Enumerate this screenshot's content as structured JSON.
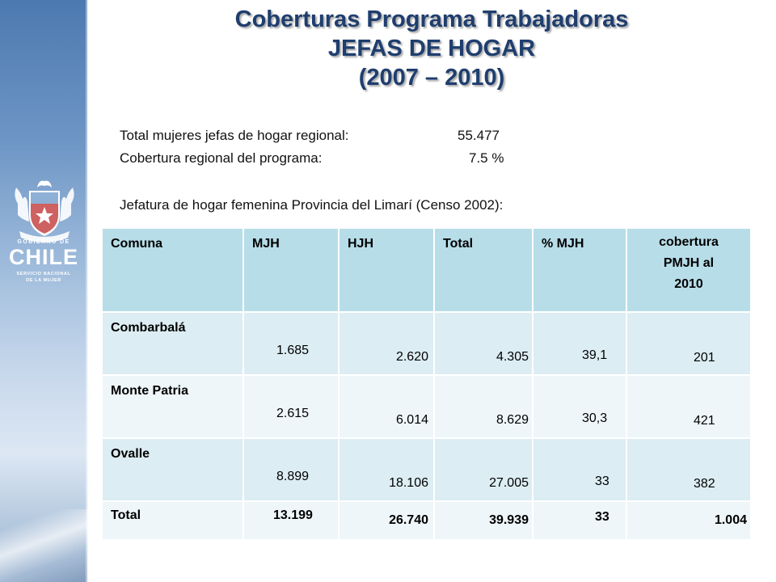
{
  "title": {
    "line1": "Coberturas Programa Trabajadoras",
    "line2": "JEFAS DE HOGAR",
    "line3": "(2007 – 2010)"
  },
  "logo": {
    "gobierno": "GOBIERNO DE",
    "chile": "CHILE",
    "servicio": "SERVICIO NACIONAL",
    "mujer": "DE LA MUJER"
  },
  "info": {
    "total_label": "Total mujeres jefas de hogar regional:",
    "total_value": "55.477",
    "coverage_label": "Cobertura regional del programa:",
    "coverage_value": "7.5 %",
    "census_label": "Jefatura de hogar femenina Provincia del Limarí (Censo 2002):"
  },
  "table": {
    "headers": [
      "Comuna",
      "MJH",
      "HJH",
      "Total",
      "% MJH",
      "cobertura PMJH  al 2010"
    ],
    "header_last_lines": [
      "cobertura",
      "PMJH  al",
      "2010"
    ],
    "rows": [
      {
        "comuna": "Combarbalá",
        "mjh": "1.685",
        "hjh": "2.620",
        "total": "4.305",
        "pct": "39,1",
        "cobertura": "201"
      },
      {
        "comuna": "Monte Patria",
        "mjh": "2.615",
        "hjh": "6.014",
        "total": "8.629",
        "pct": "30,3",
        "cobertura": "421"
      },
      {
        "comuna": "Ovalle",
        "mjh": "8.899",
        "hjh": "18.106",
        "total": "27.005",
        "pct": "33",
        "cobertura": "382"
      }
    ],
    "total_row": {
      "comuna": "Total",
      "mjh": "13.199",
      "hjh": "26.740",
      "total": "39.939",
      "pct": "33",
      "cobertura": "1.004"
    }
  }
}
